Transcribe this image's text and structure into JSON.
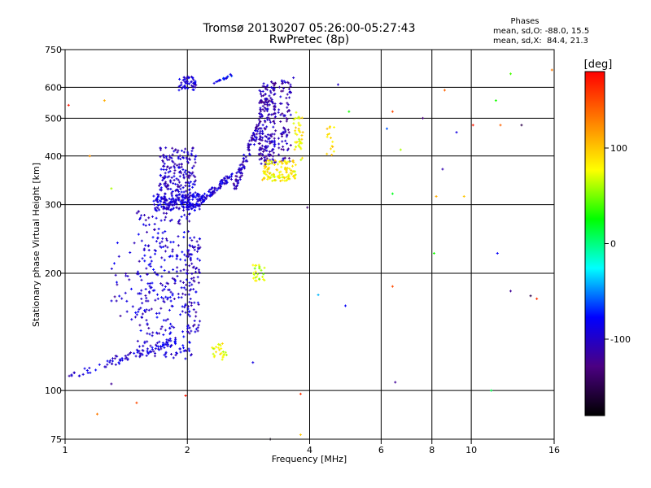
{
  "chart_data": {
    "type": "scatter",
    "title": "Tromsø 20130207 05:26:00-05:27:43",
    "subtitle": "RwPretec (8p)",
    "xlabel": "Frequency [MHz]",
    "ylabel": "Stationary phase Virtual Height [km]",
    "x_scale": "log",
    "y_scale": "log",
    "xlim": [
      1,
      16
    ],
    "ylim": [
      75,
      750
    ],
    "x_ticks": [
      1,
      2,
      4,
      6,
      8,
      10,
      16
    ],
    "y_ticks": [
      75,
      100,
      200,
      300,
      400,
      500,
      600,
      750
    ],
    "grid": true,
    "stats": {
      "heading": "Phases",
      "line1": "mean, sd,O: -88.0, 15.5",
      "line2": "mean, sd,X:  84.4, 21.3"
    },
    "colorbar": {
      "label": "[deg]",
      "range": [
        -180,
        180
      ],
      "ticks": [
        100,
        0,
        -100
      ],
      "colors": [
        "#000000",
        "#4b0082",
        "#0000ff",
        "#00ffff",
        "#00ff00",
        "#ffff00",
        "#ff7f00",
        "#ff0000"
      ]
    },
    "clusters": [
      {
        "name": "o-low-trace",
        "phase": -95,
        "n": 90,
        "x": [
          1.02,
          1.9
        ],
        "y": [
          109,
          135
        ],
        "trend": "rising"
      },
      {
        "name": "o-lower-f-spread",
        "phase": -95,
        "n": 300,
        "x": [
          1.5,
          2.05
        ],
        "y": [
          120,
          290
        ]
      },
      {
        "name": "o-lower-f-col2",
        "phase": -100,
        "n": 80,
        "x": [
          2.0,
          2.15
        ],
        "y": [
          140,
          260
        ]
      },
      {
        "name": "o-f-cusp-band",
        "phase": -95,
        "n": 200,
        "x": [
          1.65,
          2.15
        ],
        "y": [
          290,
          320
        ]
      },
      {
        "name": "o-f-upper-column",
        "phase": -100,
        "n": 180,
        "x": [
          1.7,
          2.1
        ],
        "y": [
          320,
          420
        ]
      },
      {
        "name": "o-f-extension",
        "phase": -95,
        "n": 90,
        "x": [
          2.1,
          2.6
        ],
        "y": [
          300,
          360
        ],
        "trend": "rising"
      },
      {
        "name": "o-f-steep-rise",
        "phase": -105,
        "n": 100,
        "x": [
          2.6,
          3.0
        ],
        "y": [
          330,
          480
        ],
        "trend": "rising"
      },
      {
        "name": "o-high-column",
        "phase": -110,
        "n": 220,
        "x": [
          3.0,
          3.3
        ],
        "y": [
          380,
          620
        ]
      },
      {
        "name": "o-high-column-2",
        "phase": -110,
        "n": 80,
        "x": [
          3.35,
          3.6
        ],
        "y": [
          380,
          630
        ]
      },
      {
        "name": "o-top-cluster",
        "phase": -95,
        "n": 50,
        "x": [
          1.9,
          2.1
        ],
        "y": [
          590,
          640
        ]
      },
      {
        "name": "o-top-streak",
        "phase": -80,
        "n": 20,
        "x": [
          2.3,
          2.6
        ],
        "y": [
          610,
          650
        ],
        "trend": "rising"
      },
      {
        "name": "mid-spread",
        "phase": -100,
        "n": 30,
        "x": [
          1.3,
          1.55
        ],
        "y": [
          150,
          240
        ]
      },
      {
        "name": "x-trace-lower",
        "phase": 75,
        "n": 25,
        "x": [
          2.3,
          2.5
        ],
        "y": [
          120,
          132
        ]
      },
      {
        "name": "x-trace-mid",
        "phase": 65,
        "n": 25,
        "x": [
          2.9,
          3.1
        ],
        "y": [
          190,
          210
        ]
      },
      {
        "name": "x-trace-upper",
        "phase": 85,
        "n": 120,
        "x": [
          3.05,
          3.7
        ],
        "y": [
          345,
          390
        ]
      },
      {
        "name": "x-trace-top",
        "phase": 80,
        "n": 40,
        "x": [
          3.65,
          3.85
        ],
        "y": [
          390,
          520
        ]
      },
      {
        "name": "x-trace-far",
        "phase": 90,
        "n": 15,
        "x": [
          4.4,
          4.6
        ],
        "y": [
          400,
          480
        ]
      }
    ],
    "isolated_points": [
      {
        "x": 1.02,
        "y": 540,
        "phase": 170
      },
      {
        "x": 1.15,
        "y": 400,
        "phase": 120
      },
      {
        "x": 1.2,
        "y": 87,
        "phase": 130
      },
      {
        "x": 1.25,
        "y": 555,
        "phase": 110
      },
      {
        "x": 1.3,
        "y": 330,
        "phase": 60
      },
      {
        "x": 1.3,
        "y": 104,
        "phase": -120
      },
      {
        "x": 1.5,
        "y": 93,
        "phase": 150
      },
      {
        "x": 1.98,
        "y": 97,
        "phase": 170
      },
      {
        "x": 2.9,
        "y": 118,
        "phase": -90
      },
      {
        "x": 3.2,
        "y": 75,
        "phase": -170
      },
      {
        "x": 3.65,
        "y": 635,
        "phase": -100
      },
      {
        "x": 3.8,
        "y": 98,
        "phase": 160
      },
      {
        "x": 3.8,
        "y": 77,
        "phase": 100
      },
      {
        "x": 3.95,
        "y": 295,
        "phase": -140
      },
      {
        "x": 4.2,
        "y": 176,
        "phase": -40
      },
      {
        "x": 4.7,
        "y": 610,
        "phase": -100
      },
      {
        "x": 4.9,
        "y": 165,
        "phase": -80
      },
      {
        "x": 5.0,
        "y": 520,
        "phase": 30
      },
      {
        "x": 6.2,
        "y": 470,
        "phase": -60
      },
      {
        "x": 6.4,
        "y": 520,
        "phase": 150
      },
      {
        "x": 6.4,
        "y": 320,
        "phase": 20
      },
      {
        "x": 6.4,
        "y": 185,
        "phase": 150
      },
      {
        "x": 6.5,
        "y": 105,
        "phase": -120
      },
      {
        "x": 6.7,
        "y": 415,
        "phase": 60
      },
      {
        "x": 7.6,
        "y": 500,
        "phase": -130
      },
      {
        "x": 8.1,
        "y": 225,
        "phase": 30
      },
      {
        "x": 8.2,
        "y": 315,
        "phase": 110
      },
      {
        "x": 8.5,
        "y": 370,
        "phase": -110
      },
      {
        "x": 8.6,
        "y": 590,
        "phase": 140
      },
      {
        "x": 9.2,
        "y": 460,
        "phase": -90
      },
      {
        "x": 9.6,
        "y": 315,
        "phase": 100
      },
      {
        "x": 10.1,
        "y": 480,
        "phase": 170
      },
      {
        "x": 11.2,
        "y": 100,
        "phase": 10
      },
      {
        "x": 11.5,
        "y": 555,
        "phase": 30
      },
      {
        "x": 11.6,
        "y": 225,
        "phase": -80
      },
      {
        "x": 11.8,
        "y": 480,
        "phase": 140
      },
      {
        "x": 12.5,
        "y": 650,
        "phase": 40
      },
      {
        "x": 12.5,
        "y": 180,
        "phase": -120
      },
      {
        "x": 13.3,
        "y": 480,
        "phase": -150
      },
      {
        "x": 14.0,
        "y": 175,
        "phase": -150
      },
      {
        "x": 14.5,
        "y": 172,
        "phase": 160
      },
      {
        "x": 15.8,
        "y": 665,
        "phase": 130
      }
    ]
  }
}
